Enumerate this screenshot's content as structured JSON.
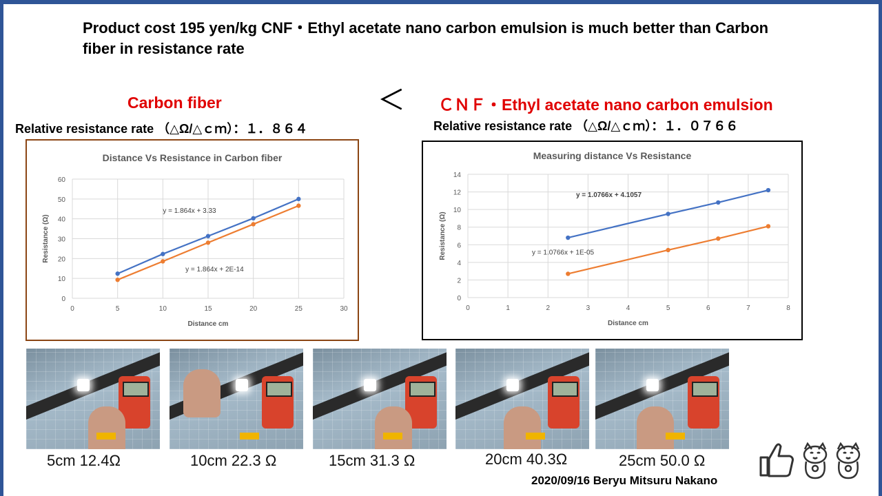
{
  "slide": {
    "title": "Product cost 195 yen/kg CNF・Ethyl acetate nano carbon emulsion is much better than  Carbon fiber in resistance rate",
    "left_heading": "Carbon fiber",
    "comparison_symbol": "＜",
    "right_heading": "ＣＮＦ・Ethyl acetate nano carbon emulsion",
    "left_rate": "Relative resistance rate （△Ω/△ｃｍ）：１．８６４",
    "right_rate": "Relative resistance rate （△Ω/△ｃｍ）：１．０７６６",
    "signature": "2020/09/16 Beryu Mitsuru Nakano",
    "accent_red": "#e00000",
    "frame_blue": "#2f5597"
  },
  "photos": [
    {
      "caption": "5cm 12.4Ω"
    },
    {
      "caption": "10cm 22.3 Ω"
    },
    {
      "caption": "15cm 31.3 Ω"
    },
    {
      "caption": "20cm 40.3Ω"
    },
    {
      "caption": "25cm 50.0 Ω"
    }
  ],
  "icons": [
    "thumbs-up-icon",
    "lucky-cat-icon",
    "lucky-cat-icon"
  ],
  "chart_data": [
    {
      "type": "line",
      "title": "Distance Vs Resistance in Carbon fiber",
      "xlabel": "Distance cm",
      "ylabel": "Resistance (Ω)",
      "xlim": [
        0,
        30
      ],
      "ylim": [
        0,
        60
      ],
      "xticks": [
        0,
        5,
        10,
        15,
        20,
        25,
        30
      ],
      "yticks": [
        0,
        10,
        20,
        30,
        40,
        50,
        60
      ],
      "grid": true,
      "border_color": "#8b4513",
      "series": [
        {
          "color": "#4472c4",
          "equation": "y = 1.864x + 3.33",
          "points": [
            [
              5,
              12.4
            ],
            [
              10,
              22.3
            ],
            [
              15,
              31.3
            ],
            [
              20,
              40.3
            ],
            [
              25,
              50.0
            ]
          ]
        },
        {
          "color": "#ed7d31",
          "equation": "y = 1.864x + 2E-14",
          "points": [
            [
              5,
              9.3
            ],
            [
              10,
              18.6
            ],
            [
              15,
              28.0
            ],
            [
              20,
              37.3
            ],
            [
              25,
              46.6
            ]
          ]
        }
      ]
    },
    {
      "type": "line",
      "title": "Measuring distance Vs Resistance",
      "xlabel": "Distance cm",
      "ylabel": "Resistance (Ω)",
      "xlim": [
        0,
        8
      ],
      "ylim": [
        0,
        14
      ],
      "xticks": [
        0,
        1,
        2,
        3,
        4,
        5,
        6,
        7,
        8
      ],
      "yticks": [
        0,
        2,
        4,
        6,
        8,
        10,
        12,
        14
      ],
      "grid": true,
      "border_color": "#000000",
      "series": [
        {
          "color": "#4472c4",
          "equation": "y = 1.0766x + 4.1057",
          "points": [
            [
              2.5,
              6.8
            ],
            [
              5,
              9.5
            ],
            [
              6.25,
              10.8
            ],
            [
              7.5,
              12.2
            ]
          ]
        },
        {
          "color": "#ed7d31",
          "equation": "y = 1.0766x + 1E-05",
          "points": [
            [
              2.5,
              2.7
            ],
            [
              5,
              5.4
            ],
            [
              6.25,
              6.7
            ],
            [
              7.5,
              8.1
            ]
          ]
        }
      ]
    }
  ]
}
